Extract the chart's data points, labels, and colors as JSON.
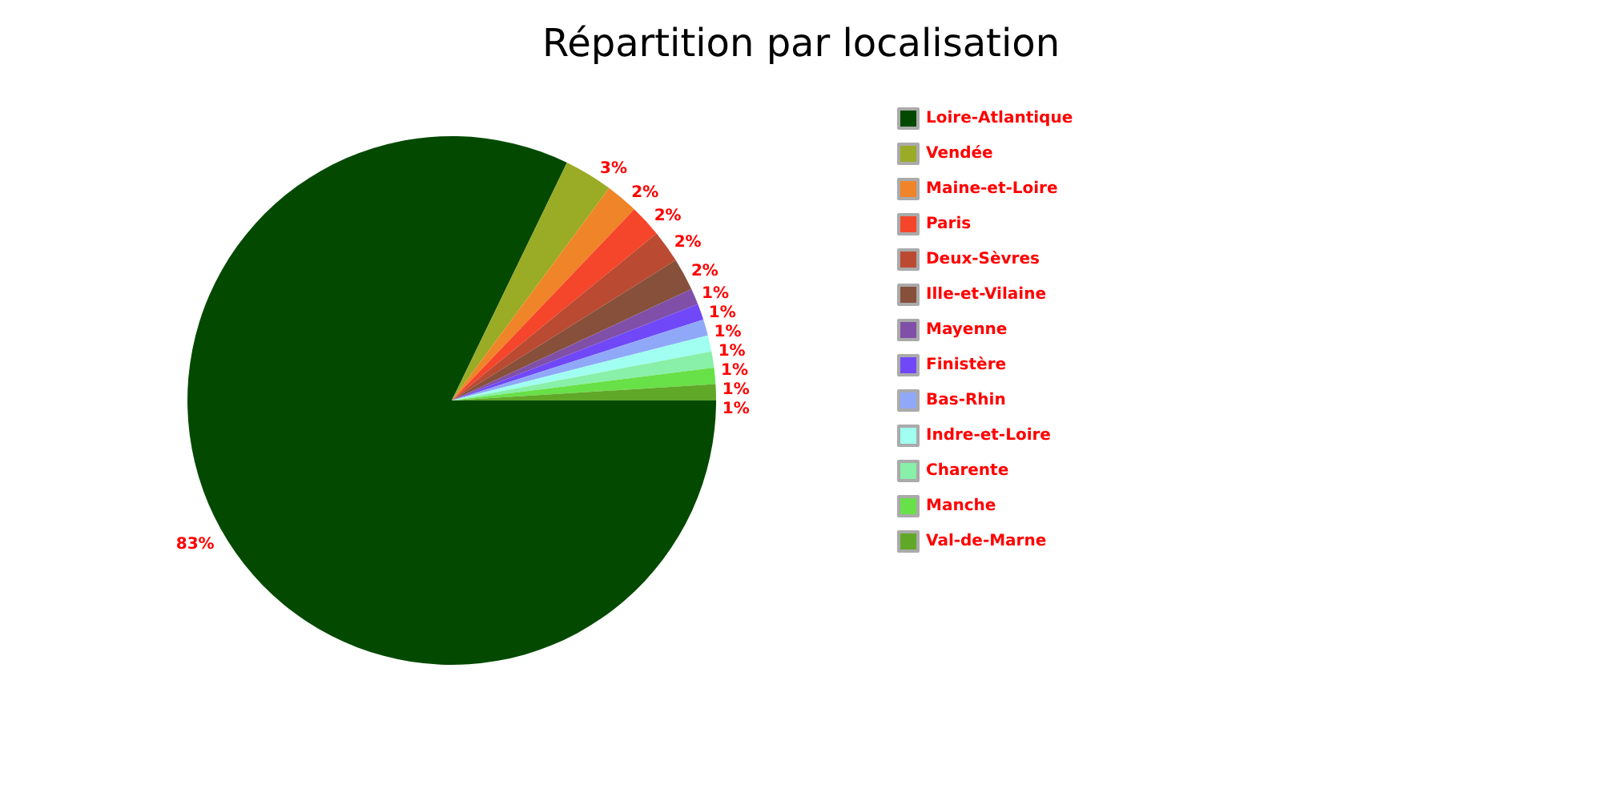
{
  "chart_data": {
    "type": "pie",
    "title": "Répartition par localisation",
    "categories": [
      "Loire-Atlantique",
      "Vendée",
      "Maine-et-Loire",
      "Paris",
      "Deux-Sèvres",
      "Ille-et-Vilaine",
      "Mayenne",
      "Finistère",
      "Bas-Rhin",
      "Indre-et-Loire",
      "Charente",
      "Manche",
      "Val-de-Marne"
    ],
    "values": [
      83,
      3,
      2,
      2,
      2,
      2,
      1,
      1,
      1,
      1,
      1,
      1,
      1
    ],
    "colors": [
      "#034a00",
      "#9aab25",
      "#f08428",
      "#f5452a",
      "#bb4a32",
      "#86503a",
      "#8050a8",
      "#7048f8",
      "#90a8f8",
      "#a0fff0",
      "#88f0a8",
      "#68e048",
      "#60a828"
    ],
    "value_labels": [
      "83%",
      "3%",
      "2%",
      "2%",
      "2%",
      "2%",
      "1%",
      "1%",
      "1%",
      "1%",
      "1%",
      "1%",
      "1%"
    ],
    "legend": "top right"
  }
}
